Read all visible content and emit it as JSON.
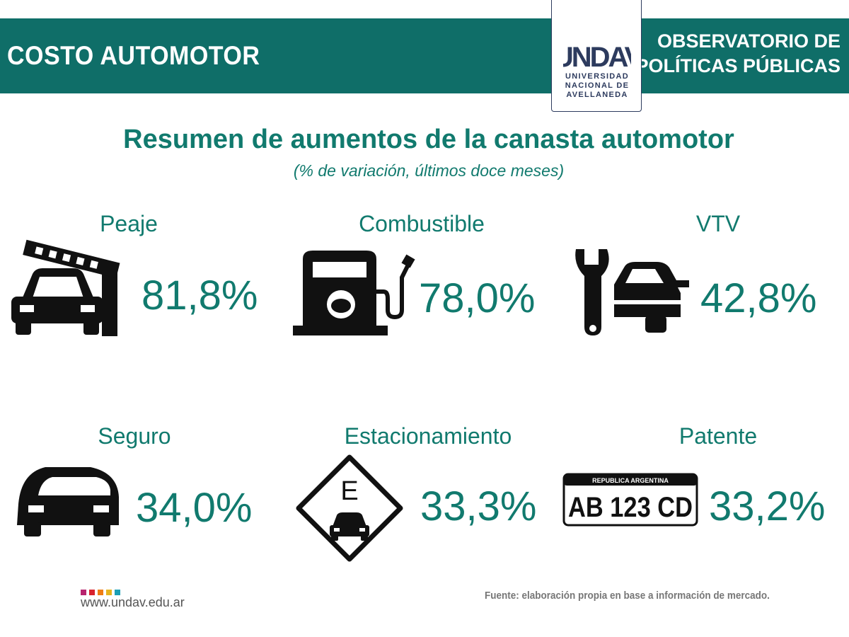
{
  "header": {
    "title": "COSTO AUTOMOTOR",
    "right_line1": "OBSERVATORIO DE",
    "right_line2": "POLÍTICAS PÚBLICAS",
    "logo_mark": "UNDAV",
    "logo_line1": "UNIVERSIDAD",
    "logo_line2": "NACIONAL DE",
    "logo_line3": "AVELLANEDA",
    "color": "#0f6e68"
  },
  "title": "Resumen de aumentos de la canasta automotor",
  "subtitle": "(% de variación, últimos doce meses)",
  "items": [
    {
      "label": "Peaje",
      "value": "81,8%",
      "icon": "toll-barrier-car-icon"
    },
    {
      "label": "Combustible",
      "value": "78,0%",
      "icon": "fuel-pump-icon"
    },
    {
      "label": "VTV",
      "value": "42,8%",
      "icon": "wrench-car-icon"
    },
    {
      "label": "Seguro",
      "value": "34,0%",
      "icon": "car-insurance-icon"
    },
    {
      "label": "Estacionamiento",
      "value": "33,3%",
      "icon": "parking-sign-icon"
    },
    {
      "label": "Patente",
      "value": "33,2%",
      "icon": "license-plate-icon"
    }
  ],
  "plate": {
    "top_text": "REPUBLICA ARGENTINA",
    "number": "AB 123 CD"
  },
  "accent_color": "#117a6e",
  "footer": {
    "url": "www.undav.edu.ar",
    "source": "Fuente: elaboración propia en base a información de mercado.",
    "dot_colors": [
      "#b8246e",
      "#d9232e",
      "#ef7d14",
      "#e6b41e",
      "#1b9fb5"
    ]
  }
}
